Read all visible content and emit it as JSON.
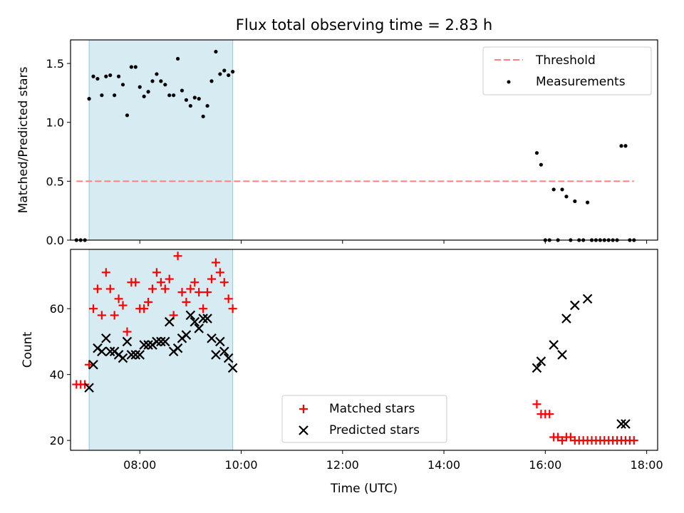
{
  "title": "Flux total observing time = 2.83 h",
  "chart_data": [
    {
      "type": "scatter",
      "ylabel": "Matched/Predicted stars",
      "ylim": [
        0,
        1.7
      ],
      "xlim": [
        "06:38",
        "18:13"
      ],
      "yticks": [
        "0.0",
        "0.5",
        "1.0",
        "1.5"
      ],
      "grid": false,
      "legend_position": "top-right",
      "shaded_interval": [
        "07:00",
        "09:50"
      ],
      "shaded_color": "#add8e6",
      "threshold": {
        "name": "Threshold",
        "value": 0.5,
        "x_range": [
          "06:45",
          "17:45"
        ],
        "color": "#ff8080"
      },
      "series": [
        {
          "name": "Measurements",
          "color": "#000000",
          "points": [
            [
              "06:45",
              0.0
            ],
            [
              "06:50",
              0.0
            ],
            [
              "06:55",
              0.0
            ],
            [
              "07:00",
              1.2
            ],
            [
              "07:05",
              1.39
            ],
            [
              "07:10",
              1.37
            ],
            [
              "07:15",
              1.23
            ],
            [
              "07:20",
              1.39
            ],
            [
              "07:25",
              1.4
            ],
            [
              "07:30",
              1.23
            ],
            [
              "07:35",
              1.39
            ],
            [
              "07:40",
              1.32
            ],
            [
              "07:45",
              1.06
            ],
            [
              "07:50",
              1.47
            ],
            [
              "07:55",
              1.47
            ],
            [
              "08:00",
              1.3
            ],
            [
              "08:05",
              1.22
            ],
            [
              "08:10",
              1.26
            ],
            [
              "08:15",
              1.35
            ],
            [
              "08:20",
              1.41
            ],
            [
              "08:25",
              1.35
            ],
            [
              "08:30",
              1.32
            ],
            [
              "08:35",
              1.23
            ],
            [
              "08:40",
              1.23
            ],
            [
              "08:45",
              1.54
            ],
            [
              "08:50",
              1.27
            ],
            [
              "08:55",
              1.19
            ],
            [
              "09:00",
              1.14
            ],
            [
              "09:05",
              1.21
            ],
            [
              "09:10",
              1.2
            ],
            [
              "09:15",
              1.05
            ],
            [
              "09:20",
              1.14
            ],
            [
              "09:25",
              1.35
            ],
            [
              "09:30",
              1.6
            ],
            [
              "09:35",
              1.41
            ],
            [
              "09:40",
              1.44
            ],
            [
              "09:45",
              1.4
            ],
            [
              "09:50",
              1.43
            ],
            [
              "15:50",
              0.74
            ],
            [
              "15:55",
              0.64
            ],
            [
              "16:00",
              0.0
            ],
            [
              "16:05",
              0.0
            ],
            [
              "16:10",
              0.43
            ],
            [
              "16:15",
              0.0
            ],
            [
              "16:20",
              0.43
            ],
            [
              "16:25",
              0.37
            ],
            [
              "16:30",
              0.0
            ],
            [
              "16:35",
              0.33
            ],
            [
              "16:40",
              0.0
            ],
            [
              "16:45",
              0.0
            ],
            [
              "16:50",
              0.32
            ],
            [
              "16:55",
              0.0
            ],
            [
              "17:00",
              0.0
            ],
            [
              "17:05",
              0.0
            ],
            [
              "17:10",
              0.0
            ],
            [
              "17:15",
              0.0
            ],
            [
              "17:20",
              0.0
            ],
            [
              "17:25",
              0.0
            ],
            [
              "17:30",
              0.8
            ],
            [
              "17:35",
              0.8
            ],
            [
              "17:40",
              0.0
            ],
            [
              "17:45",
              0.0
            ]
          ]
        }
      ]
    },
    {
      "type": "scatter",
      "ylabel": "Count",
      "xlabel": "Time (UTC)",
      "ylim": [
        17,
        78
      ],
      "xlim": [
        "06:38",
        "18:13"
      ],
      "yticks": [
        "20",
        "40",
        "60"
      ],
      "xticks": [
        "08:00",
        "10:00",
        "12:00",
        "14:00",
        "16:00",
        "18:00"
      ],
      "grid": false,
      "legend_position": "lower-center",
      "shaded_interval": [
        "07:00",
        "09:50"
      ],
      "shaded_color": "#add8e6",
      "series": [
        {
          "name": "Matched stars",
          "marker": "plus",
          "color": "#ff0000",
          "points": [
            [
              "06:45",
              37
            ],
            [
              "06:50",
              37
            ],
            [
              "06:55",
              37
            ],
            [
              "07:00",
              43
            ],
            [
              "07:05",
              60
            ],
            [
              "07:10",
              66
            ],
            [
              "07:15",
              58
            ],
            [
              "07:20",
              71
            ],
            [
              "07:25",
              66
            ],
            [
              "07:30",
              58
            ],
            [
              "07:35",
              63
            ],
            [
              "07:40",
              61
            ],
            [
              "07:45",
              53
            ],
            [
              "07:50",
              68
            ],
            [
              "07:55",
              68
            ],
            [
              "08:00",
              60
            ],
            [
              "08:05",
              60
            ],
            [
              "08:10",
              62
            ],
            [
              "08:15",
              66
            ],
            [
              "08:20",
              71
            ],
            [
              "08:25",
              68
            ],
            [
              "08:30",
              66
            ],
            [
              "08:35",
              69
            ],
            [
              "08:40",
              58
            ],
            [
              "08:45",
              76
            ],
            [
              "08:50",
              65
            ],
            [
              "08:55",
              62
            ],
            [
              "09:00",
              66
            ],
            [
              "09:05",
              68
            ],
            [
              "09:10",
              65
            ],
            [
              "09:15",
              60
            ],
            [
              "09:20",
              65
            ],
            [
              "09:25",
              69
            ],
            [
              "09:30",
              74
            ],
            [
              "09:35",
              71
            ],
            [
              "09:40",
              68
            ],
            [
              "09:45",
              63
            ],
            [
              "09:50",
              60
            ],
            [
              "15:50",
              31
            ],
            [
              "15:55",
              28
            ],
            [
              "16:00",
              28
            ],
            [
              "16:05",
              28
            ],
            [
              "16:10",
              21
            ],
            [
              "16:15",
              21
            ],
            [
              "16:20",
              20
            ],
            [
              "16:25",
              21
            ],
            [
              "16:30",
              21
            ],
            [
              "16:35",
              20
            ],
            [
              "16:40",
              20
            ],
            [
              "16:45",
              20
            ],
            [
              "16:50",
              20
            ],
            [
              "16:55",
              20
            ],
            [
              "17:00",
              20
            ],
            [
              "17:05",
              20
            ],
            [
              "17:10",
              20
            ],
            [
              "17:15",
              20
            ],
            [
              "17:20",
              20
            ],
            [
              "17:25",
              20
            ],
            [
              "17:30",
              20
            ],
            [
              "17:35",
              20
            ],
            [
              "17:40",
              20
            ],
            [
              "17:45",
              20
            ]
          ]
        },
        {
          "name": "Predicted stars",
          "marker": "x",
          "color": "#000000",
          "points": [
            [
              "07:00",
              36
            ],
            [
              "07:05",
              43
            ],
            [
              "07:10",
              48
            ],
            [
              "07:15",
              47
            ],
            [
              "07:20",
              51
            ],
            [
              "07:25",
              47
            ],
            [
              "07:30",
              47
            ],
            [
              "07:35",
              46
            ],
            [
              "07:40",
              45
            ],
            [
              "07:45",
              50
            ],
            [
              "07:50",
              46
            ],
            [
              "07:55",
              46
            ],
            [
              "08:00",
              46
            ],
            [
              "08:05",
              49
            ],
            [
              "08:10",
              49
            ],
            [
              "08:15",
              49
            ],
            [
              "08:20",
              50
            ],
            [
              "08:25",
              50
            ],
            [
              "08:30",
              50
            ],
            [
              "08:35",
              56
            ],
            [
              "08:40",
              47
            ],
            [
              "08:45",
              48
            ],
            [
              "08:50",
              51
            ],
            [
              "08:55",
              52
            ],
            [
              "09:00",
              58
            ],
            [
              "09:05",
              56
            ],
            [
              "09:10",
              54
            ],
            [
              "09:15",
              57
            ],
            [
              "09:20",
              57
            ],
            [
              "09:25",
              51
            ],
            [
              "09:30",
              46
            ],
            [
              "09:35",
              50
            ],
            [
              "09:40",
              47
            ],
            [
              "09:45",
              45
            ],
            [
              "09:50",
              42
            ],
            [
              "15:50",
              42
            ],
            [
              "15:55",
              44
            ],
            [
              "16:10",
              49
            ],
            [
              "16:20",
              46
            ],
            [
              "16:25",
              57
            ],
            [
              "16:35",
              61
            ],
            [
              "16:50",
              63
            ],
            [
              "17:30",
              25
            ],
            [
              "17:35",
              25
            ]
          ]
        }
      ]
    }
  ]
}
